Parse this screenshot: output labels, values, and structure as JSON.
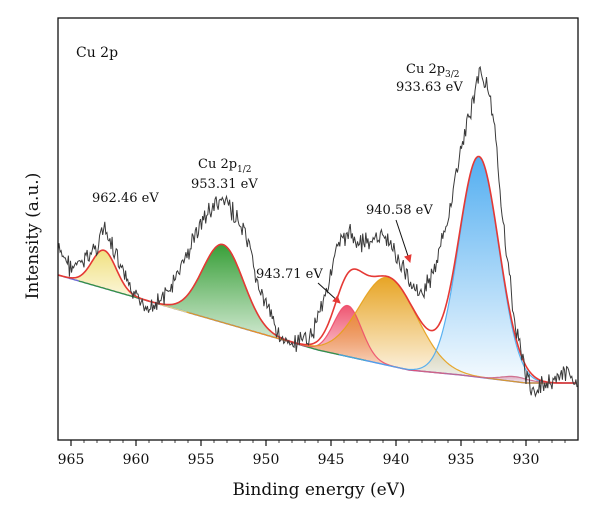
{
  "chart_data": {
    "type": "line",
    "title": "",
    "panel_label": "Cu 2p",
    "xlabel": "Binding energy (eV)",
    "ylabel": "Intensity (a.u.)",
    "x_reversed": true,
    "xlim": [
      966,
      926
    ],
    "xticks": [
      965,
      960,
      955,
      950,
      945,
      940,
      935,
      930
    ],
    "y_ticks_shown": false,
    "grid": false,
    "legend": "none",
    "raw_data_color": "#3a3a3a",
    "fit_envelope_color": "#e53935",
    "background_color": "#6a6ad6",
    "series": [
      {
        "name": "",
        "role": "raw",
        "x": [
          966,
          965,
          964,
          963,
          962.5,
          962,
          961,
          960,
          959,
          958,
          957,
          956,
          955,
          954,
          953.3,
          952.5,
          951.5,
          950.5,
          949.5,
          948.5,
          947.5,
          946.5,
          945.5,
          944.5,
          943.7,
          943,
          942,
          941,
          940.5,
          940,
          939,
          938,
          937,
          936,
          935,
          934,
          933.6,
          933,
          932.5,
          932,
          931,
          930,
          929.5,
          929,
          928,
          927,
          926
        ],
        "y": [
          250,
          268,
          262,
          245,
          228,
          242,
          275,
          300,
          305,
          300,
          282,
          252,
          222,
          206,
          201,
          212,
          240,
          290,
          320,
          345,
          345,
          335,
          295,
          250,
          232,
          240,
          242,
          238,
          242,
          255,
          280,
          294,
          270,
          218,
          150,
          95,
          72,
          82,
          120,
          190,
          310,
          375,
          395,
          385,
          380,
          375,
          380
        ]
      }
    ],
    "peaks": [
      {
        "name": "",
        "center": 962.46,
        "height": 38,
        "fwhm": 2.2,
        "color": "#f0df7a"
      },
      {
        "name": "",
        "center": 953.31,
        "height": 78,
        "fwhm": 3.7,
        "color": "#2e9a2e"
      },
      {
        "name": "",
        "center": 943.71,
        "height": 51,
        "fwhm": 2.5,
        "color": "#ee4d6a"
      },
      {
        "name": "",
        "center": 940.58,
        "height": 88,
        "fwhm": 5.2,
        "color": "#e6a01a"
      },
      {
        "name": "",
        "center": 933.63,
        "height": 220,
        "fwhm": 3.6,
        "color": "#4aaaf0"
      },
      {
        "name": "",
        "center": 930.8,
        "height": 5,
        "fwhm": 2.5,
        "color": "#cc6688"
      }
    ],
    "annotations": [
      {
        "id": "a1",
        "text": "962.46 eV",
        "x": 962.46
      },
      {
        "id": "a2a",
        "text": "Cu 2p",
        "sub": "1/2",
        "x": 953.31
      },
      {
        "id": "a2b",
        "text": "953.31 eV",
        "x": 953.31
      },
      {
        "id": "a3",
        "text": "943.71 eV",
        "x": 943.71
      },
      {
        "id": "a4",
        "text": "940.58 eV",
        "x": 940.58
      },
      {
        "id": "a5a",
        "text": "Cu 2p",
        "sub": "3/2",
        "x": 933.63
      },
      {
        "id": "a5b",
        "text": "933.63 eV",
        "x": 933.63
      }
    ]
  }
}
